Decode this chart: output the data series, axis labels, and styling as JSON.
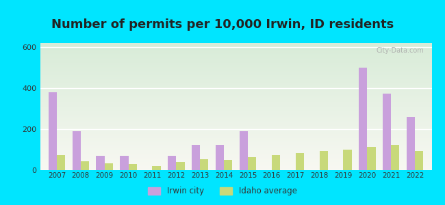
{
  "title": "Number of permits per 10,000 Irwin, ID residents",
  "years": [
    2007,
    2008,
    2009,
    2010,
    2011,
    2012,
    2013,
    2014,
    2015,
    2016,
    2017,
    2018,
    2019,
    2020,
    2021,
    2022
  ],
  "irwin_city": [
    380,
    190,
    70,
    70,
    0,
    70,
    125,
    125,
    190,
    0,
    0,
    0,
    0,
    500,
    375,
    260
  ],
  "idaho_avg": [
    75,
    45,
    35,
    30,
    20,
    40,
    55,
    50,
    65,
    75,
    85,
    95,
    100,
    115,
    125,
    95
  ],
  "irwin_color": "#c9a0dc",
  "idaho_color": "#c8d97a",
  "background_outer": "#00e5ff",
  "background_plot_top": "#f5f5f5",
  "background_plot_bottom": "#d8ecd8",
  "ylim": [
    0,
    620
  ],
  "yticks": [
    0,
    200,
    400,
    600
  ],
  "bar_width": 0.35,
  "title_fontsize": 13,
  "legend_label_irwin": "Irwin city",
  "legend_label_idaho": "Idaho average",
  "watermark": "City-Data.com"
}
